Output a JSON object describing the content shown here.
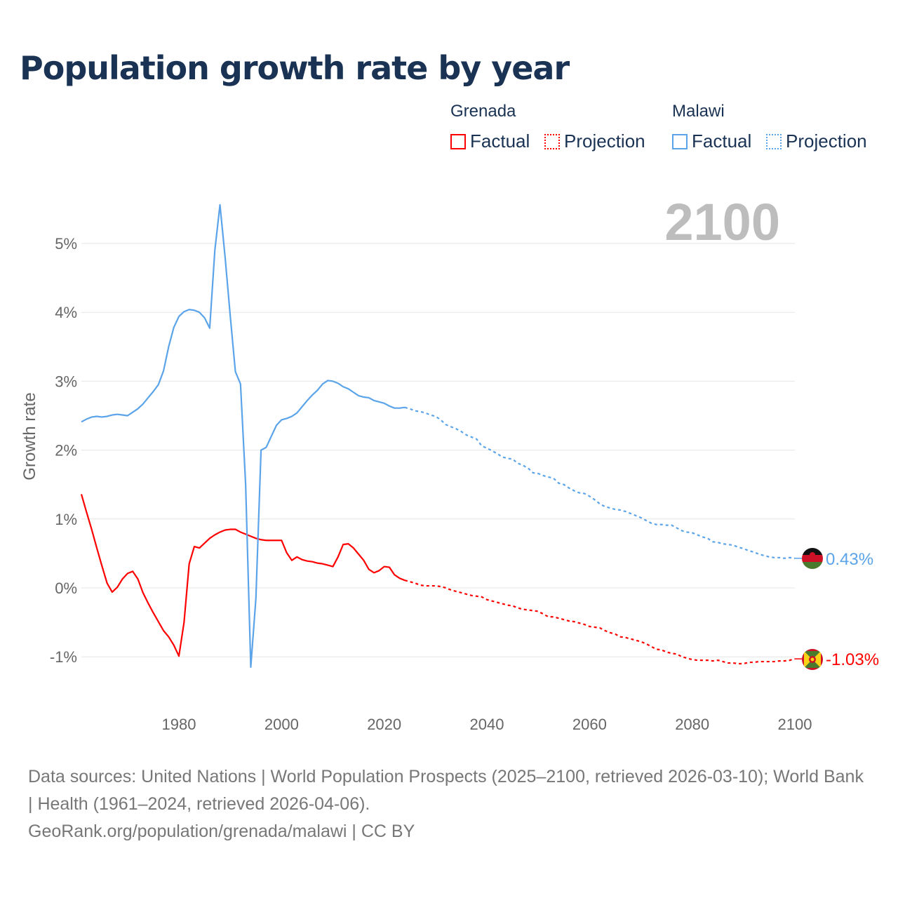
{
  "chart_data": {
    "type": "line",
    "title": "Population growth rate by year",
    "ylabel": "Growth rate",
    "xlabel": "",
    "xlim": [
      1961,
      2100
    ],
    "ylim": [
      -1.3,
      5.6
    ],
    "x_ticks": [
      1980,
      2000,
      2020,
      2040,
      2060,
      2080,
      2100
    ],
    "y_ticks": [
      -1,
      0,
      1,
      2,
      3,
      4,
      5
    ],
    "y_tick_labels": [
      "-1%",
      "0%",
      "1%",
      "2%",
      "3%",
      "4%",
      "5%"
    ],
    "grid": true,
    "year_label": "2100",
    "legend": {
      "placement": "top-right",
      "groups": [
        {
          "name": "Grenada",
          "factual": "Factual",
          "projection": "Projection"
        },
        {
          "name": "Malawi",
          "factual": "Factual",
          "projection": "Projection"
        }
      ]
    },
    "series": [
      {
        "name": "Grenada",
        "color": "#ff0000",
        "end_label": "-1.03%",
        "factual": {
          "start_year": 1961,
          "values": [
            1.36,
            1.1,
            0.85,
            0.58,
            0.32,
            0.07,
            -0.06,
            0.01,
            0.13,
            0.21,
            0.24,
            0.13,
            -0.07,
            -0.22,
            -0.36,
            -0.49,
            -0.62,
            -0.71,
            -0.83,
            -0.99,
            -0.5,
            0.35,
            0.6,
            0.58,
            0.65,
            0.72,
            0.77,
            0.81,
            0.84,
            0.85,
            0.85,
            0.81,
            0.78,
            0.75,
            0.72,
            0.7,
            0.69,
            0.69,
            0.69,
            0.69,
            0.51,
            0.4,
            0.45,
            0.41,
            0.39,
            0.38,
            0.36,
            0.35,
            0.33,
            0.31,
            0.45,
            0.63,
            0.64,
            0.58,
            0.49,
            0.4,
            0.27,
            0.22,
            0.25,
            0.31,
            0.3,
            0.19,
            0.14,
            0.11
          ]
        },
        "projection": {
          "start_year": 2024,
          "values": [
            0.11,
            0.09,
            0.07,
            0.04,
            0.03,
            0.03,
            0.03,
            0.02,
            0.0,
            -0.03,
            -0.05,
            -0.07,
            -0.09,
            -0.11,
            -0.12,
            -0.13,
            -0.17,
            -0.19,
            -0.21,
            -0.23,
            -0.25,
            -0.26,
            -0.29,
            -0.31,
            -0.32,
            -0.33,
            -0.34,
            -0.38,
            -0.42,
            -0.42,
            -0.44,
            -0.46,
            -0.48,
            -0.49,
            -0.51,
            -0.53,
            -0.56,
            -0.57,
            -0.58,
            -0.62,
            -0.65,
            -0.67,
            -0.71,
            -0.72,
            -0.74,
            -0.76,
            -0.78,
            -0.81,
            -0.85,
            -0.89,
            -0.9,
            -0.93,
            -0.95,
            -0.96,
            -1.0,
            -1.02,
            -1.04,
            -1.05,
            -1.05,
            -1.05,
            -1.06,
            -1.05,
            -1.07,
            -1.09,
            -1.09,
            -1.1,
            -1.1,
            -1.08,
            -1.08,
            -1.07,
            -1.07,
            -1.07,
            -1.07,
            -1.06,
            -1.06,
            -1.05,
            -1.03
          ]
        }
      },
      {
        "name": "Malawi",
        "color": "#5ba4ea",
        "end_label": "0.43%",
        "factual": {
          "start_year": 1961,
          "values": [
            2.41,
            2.45,
            2.48,
            2.49,
            2.48,
            2.49,
            2.51,
            2.52,
            2.51,
            2.5,
            2.55,
            2.6,
            2.67,
            2.76,
            2.85,
            2.95,
            3.15,
            3.5,
            3.78,
            3.94,
            4.01,
            4.04,
            4.03,
            4.0,
            3.92,
            3.77,
            4.9,
            5.56,
            4.8,
            3.95,
            3.14,
            2.96,
            1.5,
            -1.15,
            -0.15,
            2.0,
            2.04,
            2.2,
            2.36,
            2.44,
            2.46,
            2.49,
            2.54,
            2.63,
            2.72,
            2.8,
            2.87,
            2.96,
            3.01,
            3.0,
            2.97,
            2.92,
            2.89,
            2.84,
            2.79,
            2.77,
            2.76,
            2.72,
            2.7,
            2.68,
            2.64,
            2.61,
            2.61,
            2.62
          ]
        },
        "projection": {
          "start_year": 2024,
          "values": [
            2.62,
            2.6,
            2.57,
            2.56,
            2.54,
            2.51,
            2.49,
            2.44,
            2.37,
            2.34,
            2.31,
            2.27,
            2.22,
            2.19,
            2.16,
            2.06,
            2.03,
            1.99,
            1.95,
            1.9,
            1.88,
            1.87,
            1.81,
            1.78,
            1.74,
            1.67,
            1.66,
            1.63,
            1.61,
            1.59,
            1.52,
            1.5,
            1.45,
            1.41,
            1.38,
            1.37,
            1.33,
            1.28,
            1.22,
            1.18,
            1.16,
            1.14,
            1.13,
            1.11,
            1.08,
            1.05,
            1.02,
            0.98,
            0.94,
            0.92,
            0.92,
            0.91,
            0.91,
            0.87,
            0.83,
            0.81,
            0.8,
            0.77,
            0.74,
            0.72,
            0.67,
            0.66,
            0.64,
            0.63,
            0.62,
            0.59,
            0.57,
            0.54,
            0.52,
            0.49,
            0.47,
            0.45,
            0.44,
            0.44,
            0.43,
            0.44,
            0.43
          ]
        }
      }
    ]
  },
  "footer": {
    "sources": "Data sources: United Nations | World Population Prospects (2025–2100, retrieved 2026-03-10); World Bank | Health (1961–2024, retrieved 2026-04-06).",
    "credit": "GeoRank.org/population/grenada/malawi | CC BY"
  }
}
